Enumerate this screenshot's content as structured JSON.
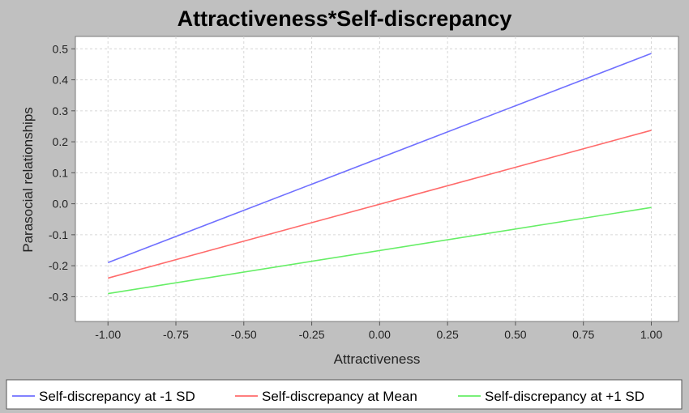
{
  "chart_data": {
    "type": "line",
    "title": "Attractiveness*Self-discrepancy",
    "xlabel": "Attractiveness",
    "ylabel": "Parasocial relationships",
    "xlim": [
      -1.12,
      1.1
    ],
    "ylim": [
      -0.38,
      0.54
    ],
    "xticks": [
      -1.0,
      -0.75,
      -0.5,
      -0.25,
      0.0,
      0.25,
      0.5,
      0.75,
      1.0
    ],
    "xtick_labels": [
      "-1.00",
      "-0.75",
      "-0.50",
      "-0.25",
      "0.00",
      "0.25",
      "0.50",
      "0.75",
      "1.00"
    ],
    "yticks": [
      0.5,
      0.4,
      0.3,
      0.2,
      0.1,
      0.0,
      -0.1,
      -0.2,
      -0.3
    ],
    "ytick_labels": [
      "0.5",
      "0.4",
      "0.3",
      "0.2",
      "0.1",
      "0.0",
      "-0.1",
      "-0.2",
      "-0.3"
    ],
    "grid": true,
    "legend_position": "bottom",
    "series": [
      {
        "name": "Self-discrepancy at -1 SD",
        "color": "#7070ff",
        "x": [
          -1.0,
          1.0
        ],
        "y": [
          -0.19,
          0.485
        ]
      },
      {
        "name": "Self-discrepancy at Mean",
        "color": "#ff6b6b",
        "x": [
          -1.0,
          1.0
        ],
        "y": [
          -0.24,
          0.237
        ]
      },
      {
        "name": "Self-discrepancy at +1 SD",
        "color": "#66ee66",
        "x": [
          -1.0,
          1.0
        ],
        "y": [
          -0.29,
          -0.012
        ]
      }
    ]
  }
}
